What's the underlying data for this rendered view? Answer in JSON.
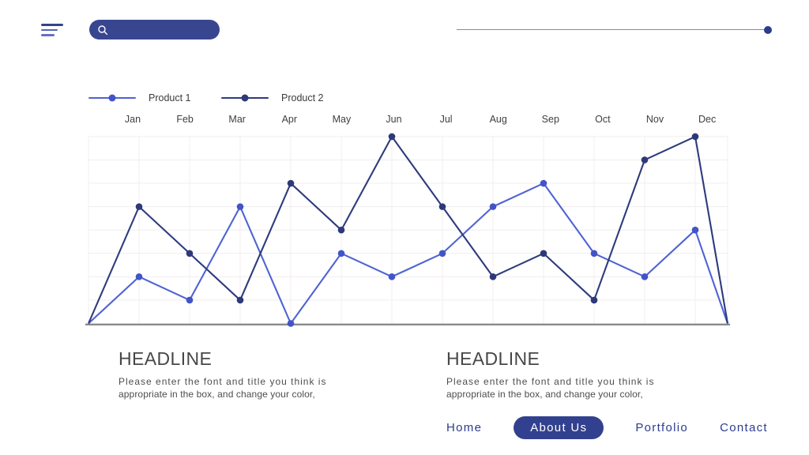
{
  "header": {
    "search_placeholder": "",
    "search_value": ""
  },
  "chart_data": {
    "type": "line",
    "title": "",
    "xlabel": "",
    "ylabel": "",
    "categories": [
      "Jan",
      "Feb",
      "Mar",
      "Apr",
      "May",
      "Jun",
      "Jul",
      "Aug",
      "Sep",
      "Oct",
      "Nov",
      "Dec"
    ],
    "series": [
      {
        "name": "Product 1",
        "color": "#4e63d4",
        "dot_color": "#4254c8",
        "values": [
          2,
          1,
          5,
          0,
          3,
          2,
          3,
          5,
          6,
          3,
          2,
          4
        ]
      },
      {
        "name": "Product 2",
        "color": "#2e3b7d",
        "dot_color": "#2d3979",
        "values": [
          5,
          3,
          1,
          6,
          4,
          8,
          5,
          2,
          3,
          1,
          7,
          8
        ]
      }
    ],
    "ylim": [
      0,
      8
    ],
    "edge_anchor_value": 0,
    "grid": true,
    "legend_position": "top-left"
  },
  "content_blocks": [
    {
      "title": "HEADLINE",
      "line1": "Please enter the font and title you think is",
      "line2": "appropriate in the box, and change your color,"
    },
    {
      "title": "HEADLINE",
      "line1": "Please enter the font and title you think is",
      "line2": "appropriate in the box, and change your color,"
    }
  ],
  "nav": {
    "items": [
      {
        "label": "Home",
        "active": false
      },
      {
        "label": "About Us",
        "active": true
      },
      {
        "label": "Portfolio",
        "active": false
      },
      {
        "label": "Contact",
        "active": false
      }
    ]
  },
  "colors": {
    "accent": "#32418f",
    "search_bar": "#384690",
    "nav_text": "#2c3d8f",
    "slider": "#7a88c8",
    "axis": "#8a8a8a"
  }
}
